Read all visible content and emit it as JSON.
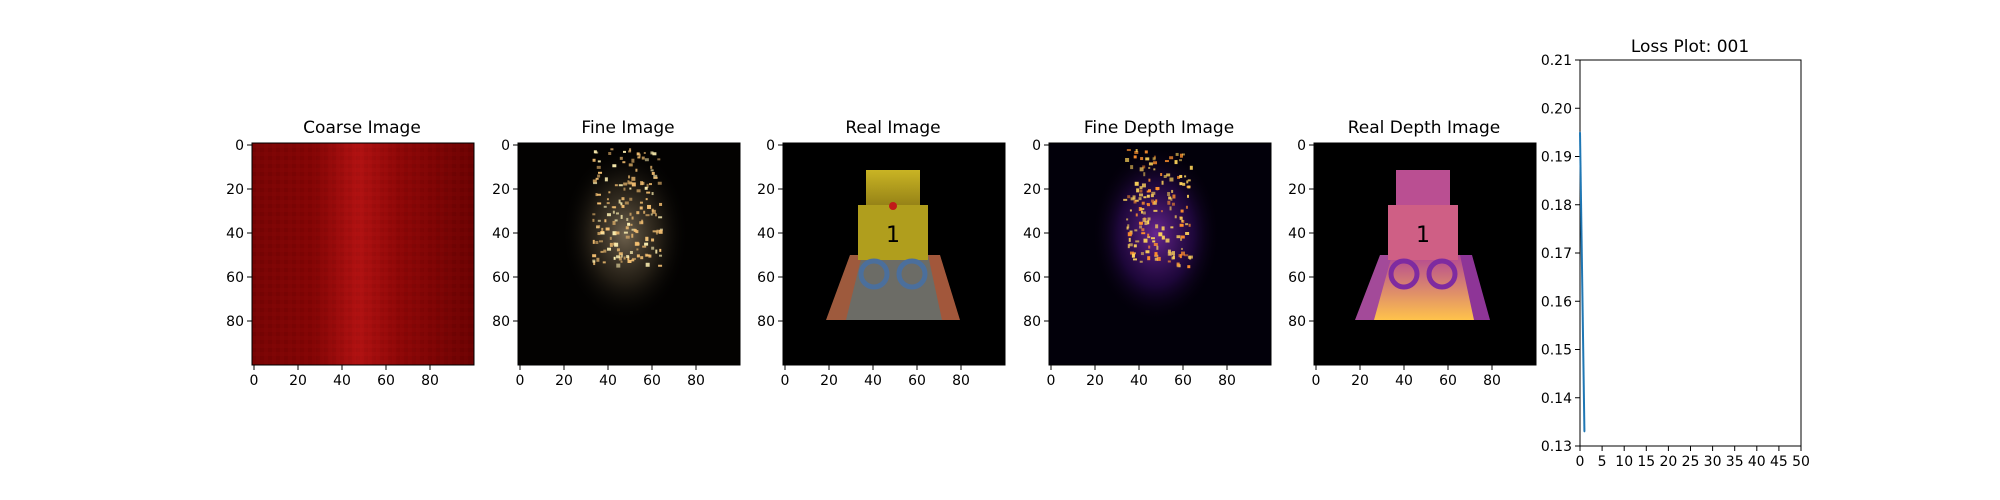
{
  "panels": [
    {
      "title": "Coarse Image",
      "image_kind": "coarse-rgb-render",
      "x_ticks": [
        "0",
        "20",
        "40",
        "60",
        "80"
      ],
      "y_ticks": [
        "0",
        "20",
        "40",
        "60",
        "80"
      ]
    },
    {
      "title": "Fine Image",
      "image_kind": "fine-rgb-render",
      "x_ticks": [
        "0",
        "20",
        "40",
        "60",
        "80"
      ],
      "y_ticks": [
        "0",
        "20",
        "40",
        "60",
        "80"
      ]
    },
    {
      "title": "Real Image",
      "image_kind": "ground-truth-rgb",
      "x_ticks": [
        "0",
        "20",
        "40",
        "60",
        "80"
      ],
      "y_ticks": [
        "0",
        "20",
        "40",
        "60",
        "80"
      ]
    },
    {
      "title": "Fine Depth Image",
      "image_kind": "fine-depth-render",
      "x_ticks": [
        "0",
        "20",
        "40",
        "60",
        "80"
      ],
      "y_ticks": [
        "0",
        "20",
        "40",
        "60",
        "80"
      ]
    },
    {
      "title": "Real Depth Image",
      "image_kind": "ground-truth-depth",
      "x_ticks": [
        "0",
        "20",
        "40",
        "60",
        "80"
      ],
      "y_ticks": [
        "0",
        "20",
        "40",
        "60",
        "80"
      ]
    }
  ],
  "colors": {
    "line": "#1f77b4",
    "axes": "#000000",
    "background": "#ffffff",
    "coarse_dark": "#560000",
    "coarse_mid": "#8f0707",
    "coarse_bright": "#b30c0c",
    "fine_points": "#f4c072",
    "depth_dark": "#2f0b59",
    "depth_mid": "#a83f93",
    "depth_bright": "#fbd15b",
    "gt_yellow": "#b6a11d",
    "gt_blue": "#4b6f9c",
    "gt_gray": "#8e8e83",
    "gt_red": "#b24521"
  },
  "chart_data": {
    "type": "line",
    "title": "Loss Plot: 001",
    "xlabel": "",
    "ylabel": "",
    "xlim": [
      0,
      50
    ],
    "ylim": [
      0.13,
      0.21
    ],
    "grid": false,
    "x_ticks": [
      0,
      5,
      10,
      15,
      20,
      25,
      30,
      35,
      40,
      45,
      50
    ],
    "x_tick_labels": [
      "0",
      "5",
      "10",
      "15",
      "20",
      "25",
      "30",
      "35",
      "40",
      "45",
      "50"
    ],
    "y_ticks": [
      0.13,
      0.14,
      0.15,
      0.16,
      0.17,
      0.18,
      0.19,
      0.2,
      0.21
    ],
    "y_tick_labels": [
      "0.13",
      "0.14",
      "0.15",
      "0.16",
      "0.17",
      "0.18",
      "0.19",
      "0.20",
      "0.21"
    ],
    "series": [
      {
        "name": "loss",
        "x": [
          0,
          1
        ],
        "y": [
          0.195,
          0.133
        ]
      }
    ]
  }
}
